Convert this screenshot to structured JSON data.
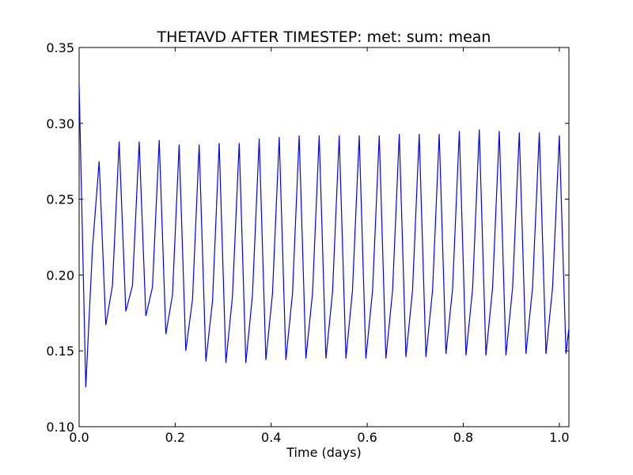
{
  "chart_data": {
    "type": "line",
    "title": "THETAVD AFTER TIMESTEP: met: sum: mean",
    "xlabel": "Time (days)",
    "ylabel": "",
    "xlim": [
      0.0,
      1.02
    ],
    "ylim": [
      0.1,
      0.35
    ],
    "xticks": [
      0.0,
      0.2,
      0.4,
      0.6,
      0.8,
      1.0
    ],
    "xtick_labels": [
      "0.0",
      "0.2",
      "0.4",
      "0.6",
      "0.8",
      "1.0"
    ],
    "yticks": [
      0.1,
      0.15,
      0.2,
      0.25,
      0.3,
      0.35
    ],
    "ytick_labels": [
      "0.10",
      "0.15",
      "0.20",
      "0.25",
      "0.30",
      "0.35"
    ],
    "grid": false,
    "line_color": "#0000ff",
    "series": [
      {
        "x": [
          0.0,
          0.0139,
          0.0278,
          0.0417,
          0.0556,
          0.0694,
          0.0833,
          0.0972,
          0.1111,
          0.125,
          0.1389,
          0.1528,
          0.1667,
          0.1806,
          0.1944,
          0.2083,
          0.2222,
          0.2361,
          0.25,
          0.2639,
          0.2778,
          0.2917,
          0.3056,
          0.3194,
          0.3333,
          0.3472,
          0.3611,
          0.375,
          0.3889,
          0.4028,
          0.4167,
          0.4306,
          0.4444,
          0.4583,
          0.4722,
          0.4861,
          0.5,
          0.5139,
          0.5278,
          0.5417,
          0.5556,
          0.5694,
          0.5833,
          0.5972,
          0.6111,
          0.625,
          0.6389,
          0.6528,
          0.6667,
          0.6806,
          0.6944,
          0.7083,
          0.7222,
          0.7361,
          0.75,
          0.7639,
          0.7778,
          0.7917,
          0.8056,
          0.8194,
          0.8333,
          0.8472,
          0.8611,
          0.875,
          0.8889,
          0.9028,
          0.9167,
          0.9306,
          0.9444,
          0.9583,
          0.9722,
          0.9861,
          1.0,
          1.0139,
          1.02
        ],
        "y": [
          0.325,
          0.126,
          0.218,
          0.275,
          0.167,
          0.193,
          0.288,
          0.176,
          0.193,
          0.288,
          0.173,
          0.192,
          0.289,
          0.161,
          0.187,
          0.286,
          0.15,
          0.184,
          0.286,
          0.143,
          0.183,
          0.287,
          0.142,
          0.186,
          0.287,
          0.142,
          0.187,
          0.29,
          0.144,
          0.188,
          0.291,
          0.144,
          0.188,
          0.292,
          0.145,
          0.188,
          0.292,
          0.145,
          0.189,
          0.292,
          0.145,
          0.19,
          0.292,
          0.145,
          0.19,
          0.292,
          0.145,
          0.19,
          0.293,
          0.146,
          0.19,
          0.293,
          0.146,
          0.19,
          0.293,
          0.148,
          0.191,
          0.295,
          0.147,
          0.191,
          0.296,
          0.147,
          0.192,
          0.295,
          0.147,
          0.192,
          0.294,
          0.148,
          0.192,
          0.294,
          0.148,
          0.192,
          0.292,
          0.148,
          0.165
        ]
      }
    ]
  }
}
